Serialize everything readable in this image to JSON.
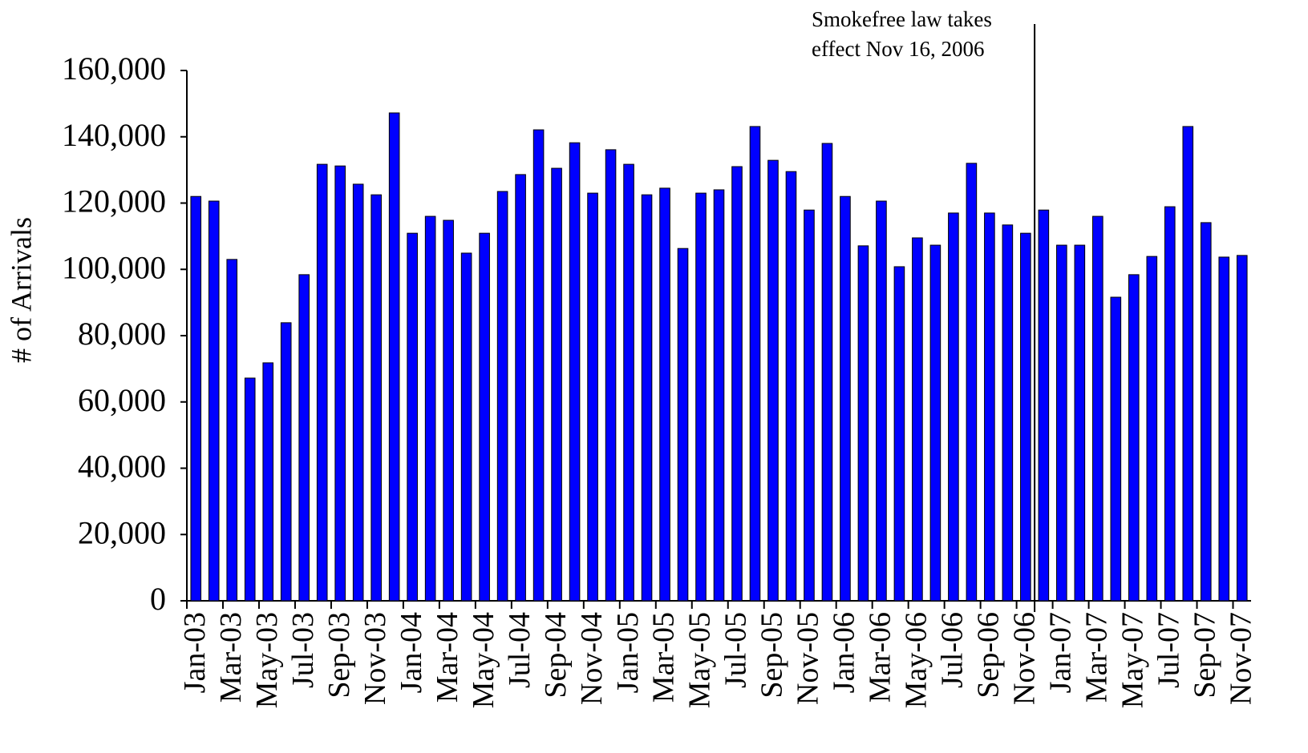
{
  "chart_data": {
    "type": "bar",
    "y_label": "# of Arrivals",
    "annotation": [
      "Smokefree law takes",
      "effect Nov 16, 2006"
    ],
    "categories": [
      "Jan-03",
      null,
      "Mar-03",
      null,
      "May-03",
      null,
      "Jul-03",
      null,
      "Sep-03",
      null,
      "Nov-03",
      null,
      "Jan-04",
      null,
      "Mar-04",
      null,
      "May-04",
      null,
      "Jul-04",
      null,
      "Sep-04",
      null,
      "Nov-04",
      null,
      "Jan-05",
      null,
      "Mar-05",
      null,
      "May-05",
      null,
      "Jul-05",
      null,
      "Sep-05",
      null,
      "Nov-05",
      null,
      "Jan-06",
      null,
      "Mar-06",
      null,
      "May-06",
      null,
      "Jul-06",
      null,
      "Sep-06",
      null,
      "Nov-06",
      null,
      "Jan-07",
      null,
      "Mar-07",
      null,
      "May-07",
      null,
      "Jul-07",
      null,
      "Sep-07",
      null,
      "Nov-07"
    ],
    "values": [
      122000,
      120600,
      103000,
      67200,
      71800,
      83900,
      98400,
      131700,
      131200,
      125700,
      122500,
      147200,
      110900,
      116000,
      114800,
      104900,
      110900,
      123500,
      128600,
      142100,
      130500,
      138200,
      123000,
      136100,
      131700,
      122500,
      124500,
      106300,
      123000,
      124000,
      131000,
      143100,
      132900,
      129500,
      117900,
      138000,
      122000,
      107100,
      120600,
      100800,
      109500,
      107300,
      117000,
      132000,
      117000,
      113400,
      110900,
      117900,
      107300,
      107300,
      116000,
      91600,
      98400,
      103900,
      118900,
      143100,
      114100,
      103700,
      104200
    ],
    "color": "#0000ff",
    "ylim": [
      0,
      160000
    ],
    "yticks": [
      0,
      {
        "value": 20000,
        "label": "20,000"
      },
      {
        "value": 40000,
        "label": "40,000"
      },
      {
        "value": 60000,
        "label": "60,000"
      },
      {
        "value": 80000,
        "label": "80,000"
      },
      {
        "value": 100000,
        "label": "100,000"
      },
      {
        "value": 120000,
        "label": "120,000"
      },
      {
        "value": 140000,
        "label": "140,000"
      },
      {
        "value": 160000,
        "label": "160,000"
      }
    ],
    "grid": false
  }
}
